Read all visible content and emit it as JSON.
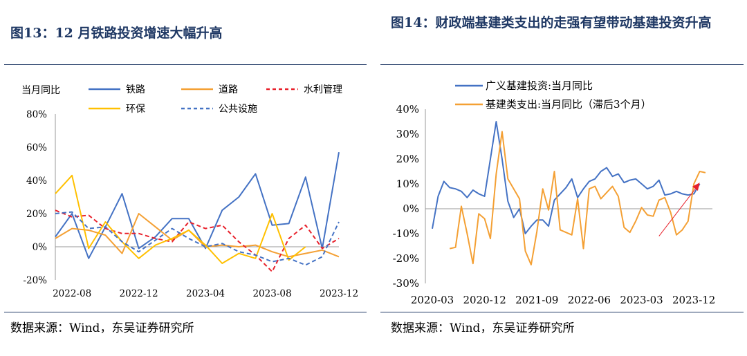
{
  "left": {
    "figure_title": "图13：12 月铁路投资增速大幅升高",
    "source": "数据来源：Wind，东吴证券研究所",
    "chart_data": {
      "type": "line",
      "ylabel": "当月同比",
      "ylim": [
        -20,
        80
      ],
      "yticks": [
        "-20%",
        "0%",
        "20%",
        "40%",
        "60%",
        "80%"
      ],
      "x_tick_labels": [
        "2022-08",
        "2022-12",
        "2023-04",
        "2023-08",
        "2023-12"
      ],
      "categories": [
        "2022-07",
        "2022-08",
        "2022-09",
        "2022-10",
        "2022-11",
        "2022-12",
        "2023-01",
        "2023-02",
        "2023-03",
        "2023-04",
        "2023-05",
        "2023-06",
        "2023-07",
        "2023-08",
        "2023-09",
        "2023-10",
        "2023-11",
        "2023-12"
      ],
      "legend_position": "top",
      "series": [
        {
          "name": "铁路",
          "color": "#4472C4",
          "style": "solid",
          "values": [
            6,
            20,
            -7,
            12,
            32,
            -1,
            6,
            17,
            17,
            -1,
            22,
            30,
            44,
            13,
            14,
            42,
            -1,
            57
          ]
        },
        {
          "name": "道路",
          "color": "#F4A034",
          "style": "solid",
          "values": [
            5,
            11,
            10,
            7,
            -4,
            20,
            12,
            4,
            10,
            0,
            1,
            0,
            1,
            -3,
            -6,
            -4,
            -2,
            -6
          ]
        },
        {
          "name": "水利管理",
          "color": "#E8202A",
          "style": "dashed",
          "values": [
            22,
            18,
            19,
            11,
            8,
            8,
            5,
            3,
            15,
            11,
            13,
            3,
            -5,
            -15,
            5,
            13,
            -1,
            5
          ]
        },
        {
          "name": "环保",
          "color": "#FFC000",
          "style": "solid",
          "values": [
            32,
            43,
            -1,
            15,
            3,
            -7,
            1,
            5,
            10,
            1,
            -10,
            -4,
            -7,
            20,
            -8,
            0,
            null,
            null
          ]
        },
        {
          "name": "公共设施",
          "color": "#4472C4",
          "style": "dashed",
          "values": [
            20,
            21,
            11,
            12,
            3,
            -3,
            4,
            11,
            5,
            0,
            2,
            -3,
            -5,
            -9,
            -7,
            -11,
            -6,
            15
          ]
        }
      ]
    }
  },
  "right": {
    "figure_title": "图14：财政端基建类支出的走强有望带动基建投资升高",
    "source": "数据来源：Wind，东吴证券研究所",
    "chart_data": {
      "type": "line",
      "ylim": [
        -30,
        40
      ],
      "yticks": [
        "-30%",
        "-20%",
        "-10%",
        "0%",
        "10%",
        "20%",
        "30%",
        "40%"
      ],
      "x_tick_labels": [
        "2020-03",
        "2020-12",
        "2021-09",
        "2022-06",
        "2023-03",
        "2023-12"
      ],
      "x_start": "2020-03",
      "legend_position": "top-left",
      "annotation": "red arrow rising toward 2023-12",
      "series": [
        {
          "name": "广义基建投资:当月同比",
          "color": "#4472C4",
          "style": "solid",
          "values": [
            -8,
            5,
            11,
            8.5,
            8,
            7,
            4.5,
            7.5,
            6,
            5,
            20,
            35,
            20,
            3,
            -3.5,
            0,
            -10,
            -7,
            -4.5,
            -4.5,
            -7,
            3.5,
            6,
            8.5,
            12,
            4.5,
            8,
            11,
            12,
            15,
            16.5,
            13,
            14,
            10.5,
            11.5,
            12,
            10,
            8,
            9,
            11.5,
            5.5,
            6,
            7,
            6,
            5.5,
            6,
            10,
            null
          ]
        },
        {
          "name": "基建类支出:当月同比（滞后3个月）",
          "color": "#F4A034",
          "style": "solid",
          "values": [
            null,
            null,
            null,
            -16,
            -15.5,
            1,
            -10,
            -22,
            -2,
            -4,
            -12,
            14,
            31,
            12,
            8,
            4,
            -17,
            -22.5,
            -9,
            8,
            -0.5,
            15,
            -8.5,
            -9.5,
            -10.5,
            4,
            -16,
            8,
            9,
            4,
            6.5,
            9,
            5,
            -7.5,
            -9.5,
            -5,
            0.5,
            -2.5,
            -3,
            3.5,
            4.5,
            -1.5,
            -10.5,
            -8.5,
            -5,
            10,
            15,
            14.5
          ]
        }
      ]
    }
  }
}
